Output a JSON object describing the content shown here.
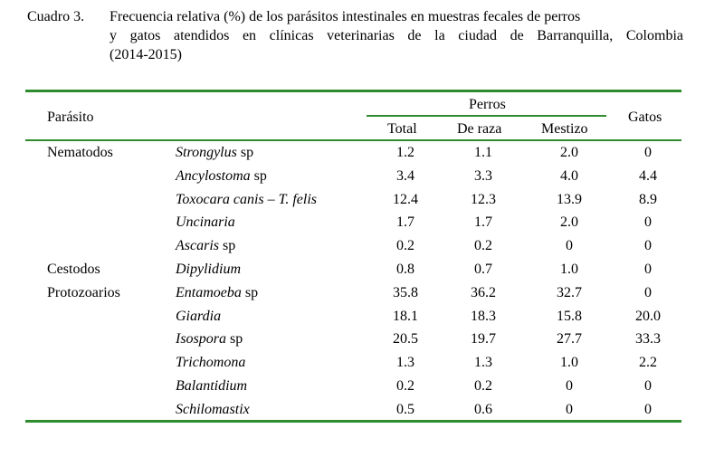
{
  "caption": {
    "label": "Cuadro 3.",
    "line1": "Frecuencia relativa (%) de los parásitos intestinales en muestras fecales de perros",
    "line2": "y gatos atendidos en clínicas veterinarias de la ciudad de Barranquilla, Colombia",
    "line3": "(2014-2015)"
  },
  "header": {
    "parasite": "Parásito",
    "dogs": "Perros",
    "total": "Total",
    "breed": "De raza",
    "mixed": "Mestizo",
    "cats": "Gatos"
  },
  "rows": [
    {
      "group": "Nematodos",
      "name": "Strongylus",
      "suffix": " sp",
      "total": "1.2",
      "breed": "1.1",
      "mixed": "2.0",
      "cats": "0"
    },
    {
      "group": "",
      "name": "Ancylostoma",
      "suffix": " sp",
      "total": "3.4",
      "breed": "3.3",
      "mixed": "4.0",
      "cats": "4.4"
    },
    {
      "group": "",
      "name": "Toxocara canis – T. felis",
      "suffix": "",
      "total": "12.4",
      "breed": "12.3",
      "mixed": "13.9",
      "cats": "8.9"
    },
    {
      "group": "",
      "name": "Uncinaria",
      "suffix": "",
      "total": "1.7",
      "breed": "1.7",
      "mixed": "2.0",
      "cats": "0"
    },
    {
      "group": "",
      "name": "Ascaris",
      "suffix": " sp",
      "total": "0.2",
      "breed": "0.2",
      "mixed": "0",
      "cats": "0"
    },
    {
      "group": "Cestodos",
      "name": "Dipylidium",
      "suffix": "",
      "total": "0.8",
      "breed": "0.7",
      "mixed": "1.0",
      "cats": "0"
    },
    {
      "group": "Protozoarios",
      "name": "Entamoeba",
      "suffix": " sp",
      "total": "35.8",
      "breed": "36.2",
      "mixed": "32.7",
      "cats": "0"
    },
    {
      "group": "",
      "name": "Giardia",
      "suffix": "",
      "total": "18.1",
      "breed": "18.3",
      "mixed": "15.8",
      "cats": "20.0"
    },
    {
      "group": "",
      "name": "Isospora",
      "suffix": " sp",
      "total": "20.5",
      "breed": "19.7",
      "mixed": "27.7",
      "cats": "33.3"
    },
    {
      "group": "",
      "name": "Trichomona",
      "suffix": "",
      "total": "1.3",
      "breed": "1.3",
      "mixed": "1.0",
      "cats": "2.2"
    },
    {
      "group": "",
      "name": "Balantidium",
      "suffix": "",
      "total": "0.2",
      "breed": "0.2",
      "mixed": "0",
      "cats": "0"
    },
    {
      "group": "",
      "name": "Schilomastix",
      "suffix": "",
      "total": "0.5",
      "breed": "0.6",
      "mixed": "0",
      "cats": "0"
    }
  ]
}
